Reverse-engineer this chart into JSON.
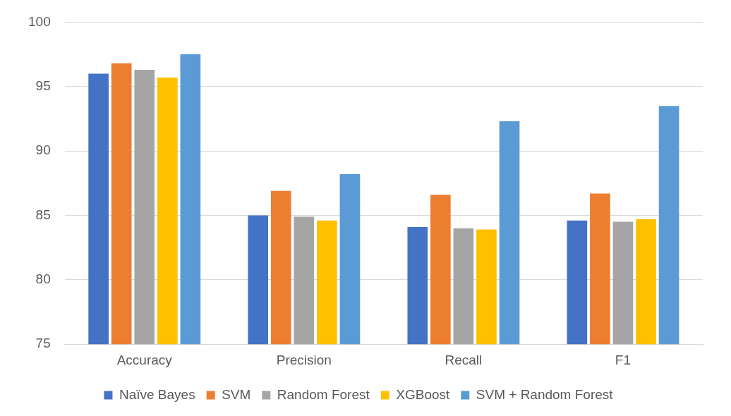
{
  "chart_data": {
    "type": "bar",
    "categories": [
      "Accuracy",
      "Precision",
      "Recall",
      "F1"
    ],
    "series": [
      {
        "name": "Naïve Bayes",
        "color": "#4472c4",
        "values": [
          96.0,
          85.0,
          84.1,
          84.6
        ]
      },
      {
        "name": "SVM",
        "color": "#ed7d31",
        "values": [
          96.8,
          86.9,
          86.6,
          86.7
        ]
      },
      {
        "name": "Random Forest",
        "color": "#a5a5a5",
        "values": [
          96.3,
          84.9,
          84.0,
          84.5
        ]
      },
      {
        "name": "XGBoost",
        "color": "#ffc000",
        "values": [
          95.7,
          84.6,
          83.9,
          84.7
        ]
      },
      {
        "name": "SVM + Random Forest",
        "color": "#5b9bd5",
        "values": [
          97.5,
          88.2,
          92.3,
          93.5
        ]
      }
    ],
    "ylim": [
      75,
      100
    ],
    "yticks": [
      75,
      80,
      85,
      90,
      95,
      100
    ],
    "grid": "y",
    "legend": "bottom"
  }
}
